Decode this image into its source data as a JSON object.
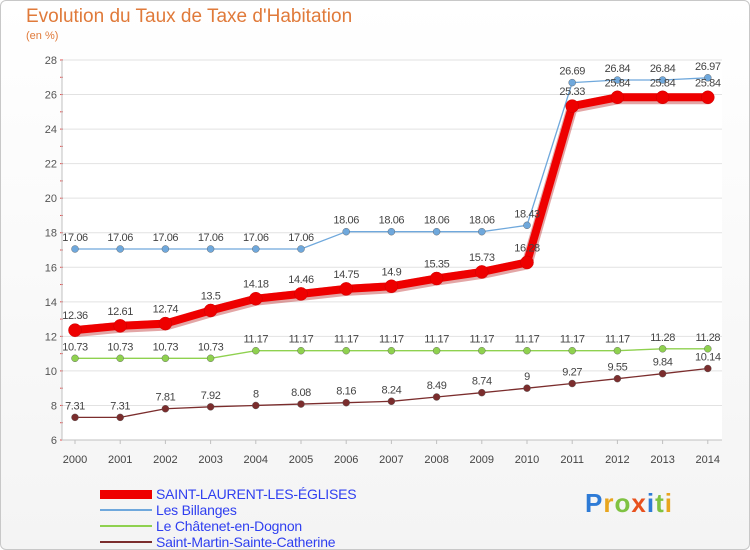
{
  "title": "Evolution du Taux de Taxe d'Habitation",
  "unit": "(en %)",
  "logo": "Proxiti",
  "chart_data": {
    "type": "line",
    "title": "Evolution du Taux de Taxe d'Habitation",
    "ylabel": "(en %)",
    "xlabel": "",
    "ylim": [
      6,
      28
    ],
    "yticks": [
      6,
      8,
      10,
      12,
      14,
      16,
      18,
      20,
      22,
      24,
      26,
      28
    ],
    "grid": true,
    "categories": [
      "2000",
      "2001",
      "2002",
      "2003",
      "2004",
      "2005",
      "2006",
      "2007",
      "2008",
      "2009",
      "2010",
      "2011",
      "2012",
      "2013",
      "2014"
    ],
    "series": [
      {
        "name": "SAINT-LAURENT-LES-ÉGLISES",
        "color": "#ee0000",
        "values": [
          12.36,
          12.61,
          12.74,
          13.5,
          14.18,
          14.46,
          14.75,
          14.9,
          15.35,
          15.73,
          16.28,
          25.33,
          25.84,
          25.84,
          25.84
        ],
        "labels": [
          "12.36",
          "12.61",
          "12.74",
          "13.5",
          "14.18",
          "14.46",
          "14.75",
          "14.9",
          "15.35",
          "15.73",
          "16.28",
          "25.33",
          "25.84",
          "25.84",
          "25.84"
        ]
      },
      {
        "name": "Les Billanges",
        "color": "#6fa8dc",
        "values": [
          17.06,
          17.06,
          17.06,
          17.06,
          17.06,
          17.06,
          18.06,
          18.06,
          18.06,
          18.06,
          18.43,
          26.69,
          26.84,
          26.84,
          26.97
        ],
        "labels": [
          "17.06",
          "17.06",
          "17.06",
          "17.06",
          "17.06",
          "17.06",
          "18.06",
          "18.06",
          "18.06",
          "18.06",
          "18.43",
          "26.69",
          "26.84",
          "26.84",
          "26.97"
        ]
      },
      {
        "name": "Le Châtenet-en-Dognon",
        "color": "#8fd14f",
        "values": [
          10.73,
          10.73,
          10.73,
          10.73,
          11.17,
          11.17,
          11.17,
          11.17,
          11.17,
          11.17,
          11.17,
          11.17,
          11.17,
          11.28,
          11.28
        ],
        "labels": [
          "10.73",
          "10.73",
          "10.73",
          "10.73",
          "11.17",
          "11.17",
          "11.17",
          "11.17",
          "11.17",
          "11.17",
          "11.17",
          "11.17",
          "11.17",
          "11.28",
          "11.28"
        ]
      },
      {
        "name": "Saint-Martin-Sainte-Catherine",
        "color": "#7b2d2d",
        "values": [
          7.31,
          7.31,
          7.81,
          7.92,
          8,
          8.08,
          8.16,
          8.24,
          8.49,
          8.74,
          9,
          9.27,
          9.55,
          9.84,
          10.14
        ],
        "labels": [
          "7.31",
          "7.31",
          "7.81",
          "7.92",
          "8",
          "8.08",
          "8.16",
          "8.24",
          "8.49",
          "8.74",
          "9",
          "9.27",
          "9.55",
          "9.84",
          "10.14"
        ]
      }
    ]
  }
}
